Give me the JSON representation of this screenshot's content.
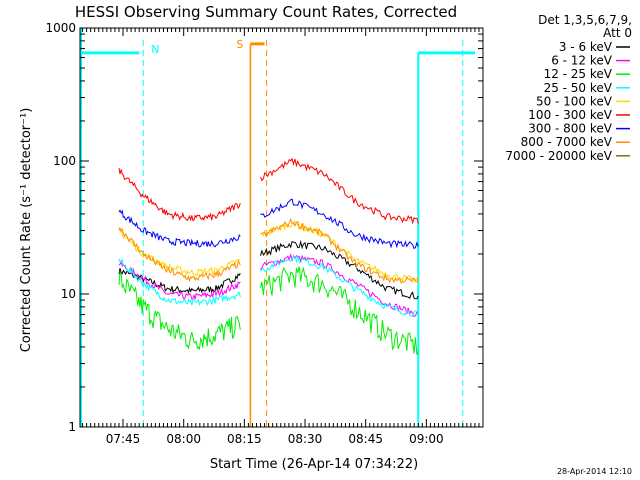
{
  "chart_data": {
    "type": "line",
    "title": "HESSI Observing Summary Count Rates, Corrected",
    "xlabel": "Start Time (26-Apr-14 07:34:22)",
    "ylabel": "Corrected Count Rate (s⁻¹ detector⁻¹)",
    "yscale": "log",
    "ylim": [
      1,
      1000
    ],
    "xlim": [
      "07:34:22",
      "09:14:00"
    ],
    "x_ticks": [
      "07:45",
      "08:00",
      "08:15",
      "08:30",
      "08:45",
      "09:00"
    ],
    "y_ticks": [
      "1",
      "10",
      "100",
      "1000"
    ],
    "legend_header": [
      "Det 1,3,5,6,7,9,",
      "Att 0"
    ],
    "legend_position": "right",
    "footer_date": "28-Apr-2014 12:10",
    "night_label": "N",
    "saa_label": "S",
    "flag_colors": {
      "night": "#00ffff",
      "saa": "#ff8c00"
    },
    "orbit_windows": [
      {
        "start": "07:44:00",
        "end": "08:14:00"
      },
      {
        "start": "08:19:00",
        "end": "08:58:00"
      }
    ],
    "series": [
      {
        "name": "3 - 6 keV",
        "color": "#000000",
        "values": [
          15,
          13,
          11,
          10.5,
          11,
          14,
          20,
          24,
          22,
          16,
          11,
          9.5
        ]
      },
      {
        "name": "6 - 12 keV",
        "color": "#ff00ff",
        "values": [
          17,
          13,
          10,
          9.5,
          10,
          12,
          16,
          19,
          17,
          12,
          8.5,
          7
        ]
      },
      {
        "name": "12 - 25 keV",
        "color": "#00ee00",
        "values": [
          13,
          8,
          5.5,
          4.5,
          5,
          6,
          11,
          14,
          12,
          8,
          5,
          4
        ]
      },
      {
        "name": "25 - 50 keV",
        "color": "#00ffff",
        "values": [
          18,
          12,
          9,
          8.5,
          9,
          10,
          15,
          19,
          16,
          11,
          8,
          7
        ]
      },
      {
        "name": "50 - 100 keV",
        "color": "#ffd700",
        "values": [
          30,
          20,
          16,
          14.5,
          15,
          18,
          28,
          34,
          28,
          18,
          14,
          12.5
        ]
      },
      {
        "name": "100 - 300 keV",
        "color": "#ff0000",
        "values": [
          85,
          55,
          40,
          37,
          38,
          48,
          75,
          100,
          80,
          50,
          38,
          36
        ]
      },
      {
        "name": "300 - 800 keV",
        "color": "#0000ff",
        "values": [
          42,
          30,
          25,
          24,
          24,
          27,
          38,
          50,
          40,
          28,
          24,
          23
        ]
      },
      {
        "name": "800 - 7000 keV",
        "color": "#ff8c00",
        "values": [
          32,
          20,
          15,
          13,
          14,
          17,
          27,
          35,
          28,
          17,
          13,
          12.5
        ]
      },
      {
        "name": "7000 - 20000 keV",
        "color": "#8b6914",
        "values": []
      }
    ]
  }
}
